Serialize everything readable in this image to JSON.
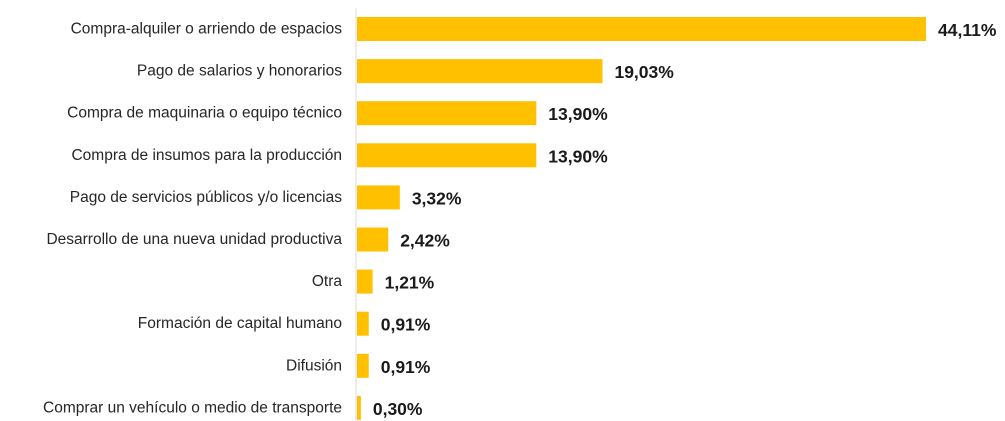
{
  "chart_data": {
    "type": "bar",
    "orientation": "horizontal",
    "title": "",
    "xlabel": "",
    "ylabel": "",
    "grid": false,
    "legend": "none",
    "categories": [
      "Compra-alquiler o arriendo de espacios",
      "Pago de salarios y honorarios",
      "Compra de maquinaria o equipo técnico",
      "Compra de insumos para la producción",
      "Pago de servicios públicos y/o licencias",
      "Desarrollo de una nueva unidad productiva",
      "Otra",
      "Formación de capital humano",
      "Difusión",
      "Comprar un vehículo o medio de transporte"
    ],
    "values": [
      44.11,
      19.03,
      13.9,
      13.9,
      3.32,
      2.42,
      1.21,
      0.91,
      0.91,
      0.3
    ],
    "value_labels": [
      "44,11%",
      "19,03%",
      "13,90%",
      "13,90%",
      "3,32%",
      "2,42%",
      "1,21%",
      "0,91%",
      "0,91%",
      "0,30%"
    ],
    "xlim": [
      0,
      44.11
    ],
    "bar_color": "#FFC000",
    "axis_color": "#d9d9d9"
  }
}
